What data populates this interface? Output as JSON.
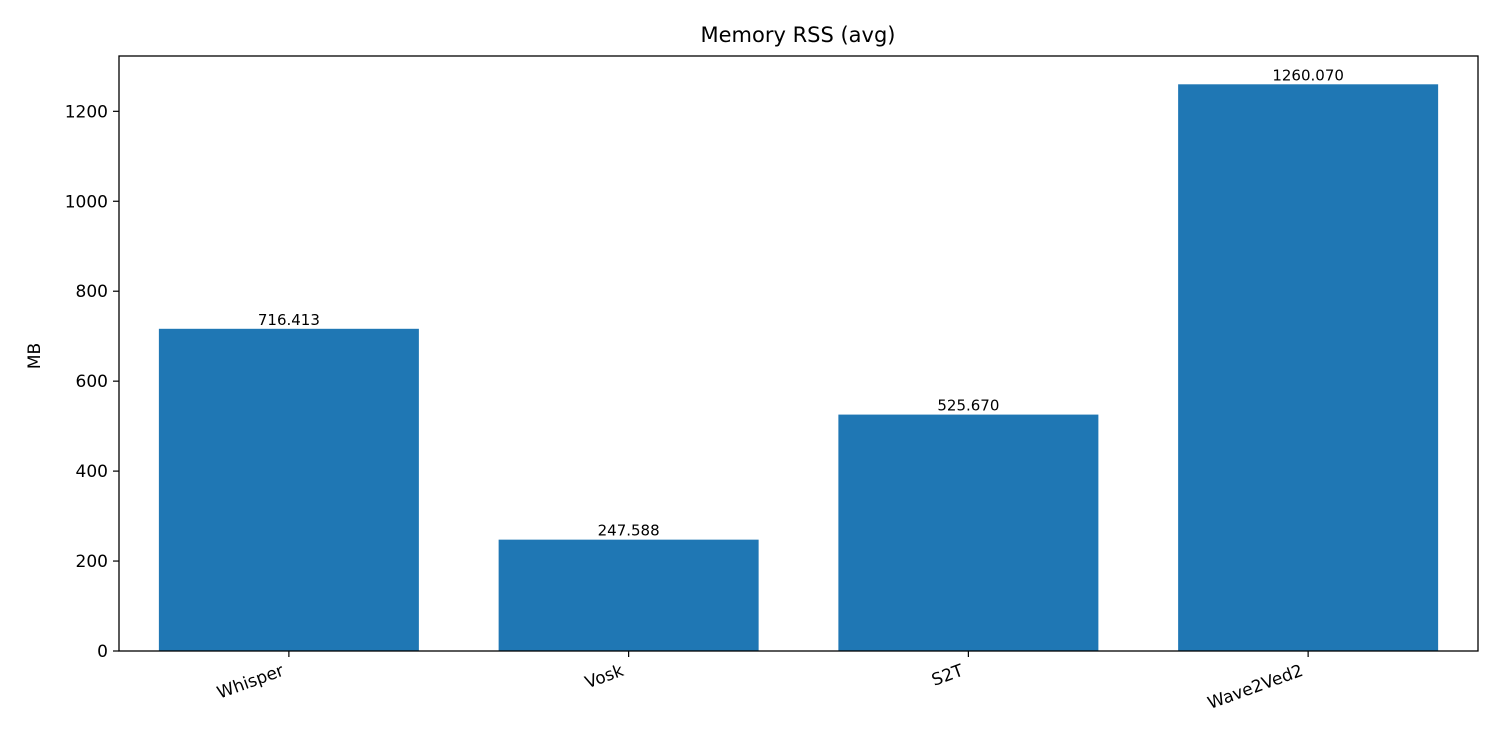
{
  "chart_data": {
    "type": "bar",
    "title": "Memory RSS (avg)",
    "xlabel": "",
    "ylabel": "MB",
    "categories": [
      "Whisper",
      "Vosk",
      "S2T",
      "Wave2Ved2"
    ],
    "values": [
      716.413,
      247.588,
      525.67,
      1260.07
    ],
    "value_labels": [
      "716.413",
      "247.588",
      "525.670",
      "1260.070"
    ],
    "ylim": [
      0,
      1323
    ],
    "yticks": [
      0,
      200,
      400,
      600,
      800,
      1000,
      1200
    ],
    "grid": false,
    "legend": "none",
    "bar_color": "#1f77b4",
    "x_tick_rotation": "diagonal"
  }
}
